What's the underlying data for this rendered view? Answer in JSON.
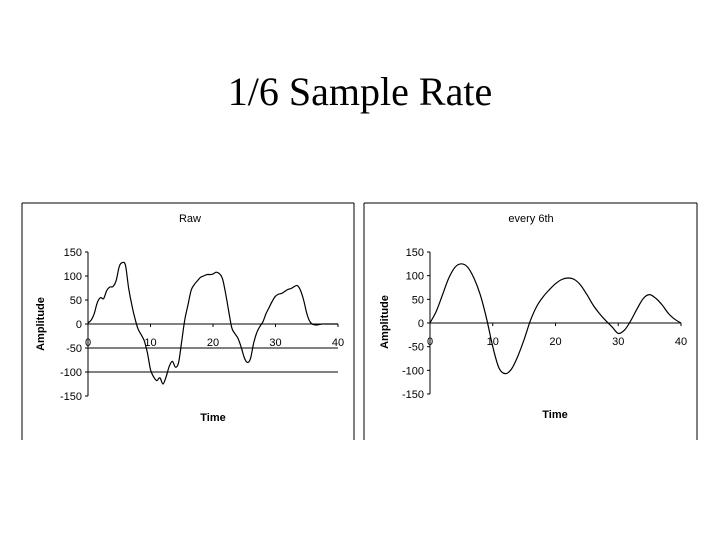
{
  "slide": {
    "title": "1/6 Sample Rate"
  },
  "chart_data": [
    {
      "type": "line",
      "title": "Raw",
      "xlabel": "Time",
      "ylabel": "Amplitude",
      "xlim": [
        0,
        40
      ],
      "ylim": [
        -150,
        150
      ],
      "yticks": [
        150,
        100,
        50,
        0,
        -50,
        -100,
        -150
      ],
      "xticks": [
        0,
        10,
        20,
        30,
        40
      ],
      "gridlines": [
        -50,
        -100
      ],
      "series": [
        {
          "name": "Raw",
          "x": [
            0,
            0.5,
            1,
            1.5,
            2,
            2.5,
            3,
            3.5,
            4,
            4.5,
            5,
            5.5,
            6,
            6.5,
            7,
            7.5,
            8,
            8.5,
            9,
            9.5,
            10,
            10.5,
            11,
            11.5,
            12,
            12.5,
            13,
            13.5,
            14,
            14.5,
            15,
            15.5,
            16,
            16.5,
            17,
            17.5,
            18,
            18.5,
            19,
            19.5,
            20,
            20.5,
            21,
            21.5,
            22,
            22.5,
            23,
            23.5,
            24,
            24.5,
            25,
            25.5,
            26,
            26.5,
            27,
            27.5,
            28,
            28.5,
            29,
            29.5,
            30,
            30.5,
            31,
            31.5,
            32,
            32.5,
            33,
            33.5,
            34,
            34.5,
            35,
            35.5,
            36,
            36.5,
            37,
            37.5,
            38,
            38.5,
            39,
            39.5,
            40
          ],
          "y": [
            2,
            8,
            22,
            45,
            55,
            53,
            70,
            77,
            78,
            90,
            120,
            128,
            122,
            75,
            40,
            12,
            -10,
            -22,
            -35,
            -60,
            -95,
            -110,
            -118,
            -112,
            -125,
            -110,
            -88,
            -78,
            -90,
            -80,
            -35,
            10,
            40,
            70,
            82,
            90,
            97,
            100,
            103,
            103,
            104,
            108,
            105,
            95,
            65,
            28,
            -8,
            -20,
            -30,
            -48,
            -70,
            -80,
            -72,
            -40,
            -18,
            -5,
            5,
            22,
            35,
            48,
            58,
            62,
            64,
            68,
            72,
            74,
            78,
            80,
            70,
            50,
            22,
            5,
            -1,
            -2,
            -1,
            0,
            0,
            0,
            0,
            0,
            0
          ]
        }
      ]
    },
    {
      "type": "line",
      "title": "every 6th",
      "xlabel": "Time",
      "ylabel": "Amplitude",
      "xlim": [
        0,
        40
      ],
      "ylim": [
        -150,
        150
      ],
      "yticks": [
        150,
        100,
        50,
        0,
        -50,
        -100,
        -150
      ],
      "xticks": [
        0,
        10,
        20,
        30,
        40
      ],
      "gridlines": [],
      "series": [
        {
          "name": "every 6th",
          "x": [
            0,
            1,
            2,
            3,
            4,
            5,
            6,
            7,
            8,
            9,
            10,
            11,
            12,
            13,
            14,
            15,
            16,
            17,
            18,
            19,
            20,
            21,
            22,
            23,
            24,
            25,
            26,
            27,
            28,
            29,
            30,
            31,
            32,
            33,
            34,
            35,
            36,
            37,
            38,
            39,
            40
          ],
          "y": [
            0,
            25,
            60,
            95,
            118,
            125,
            118,
            95,
            60,
            10,
            -50,
            -95,
            -107,
            -97,
            -70,
            -35,
            5,
            35,
            55,
            70,
            83,
            92,
            95,
            92,
            80,
            60,
            38,
            20,
            5,
            -8,
            -22,
            -15,
            5,
            30,
            52,
            60,
            52,
            38,
            20,
            8,
            0
          ]
        }
      ]
    }
  ]
}
